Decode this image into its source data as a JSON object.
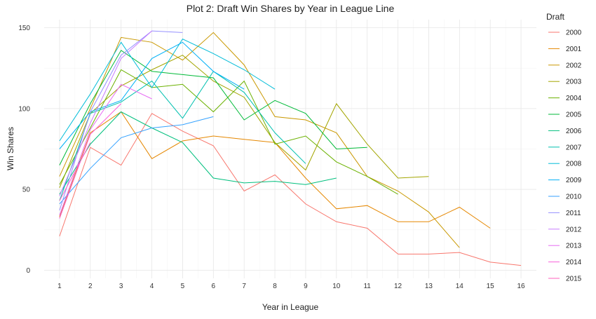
{
  "chart_data": {
    "type": "line",
    "title": "Plot 2: Draft Win Shares by Year in League Line",
    "xlabel": "Year in League",
    "ylabel": "Win Shares",
    "xlim": [
      0.5,
      16.5
    ],
    "ylim": [
      -5,
      155
    ],
    "x_ticks": [
      1,
      2,
      3,
      4,
      5,
      6,
      7,
      8,
      9,
      10,
      11,
      12,
      13,
      14,
      15,
      16
    ],
    "y_ticks": [
      0,
      50,
      100,
      150
    ],
    "grid": true,
    "legend_title": "Draft",
    "legend_position": "right",
    "series": [
      {
        "name": "2000",
        "color": "#F8766D",
        "x": [
          1,
          2,
          3,
          4,
          5,
          6,
          7,
          8,
          9,
          10,
          11,
          12,
          13,
          14,
          15,
          16
        ],
        "y": [
          21,
          76,
          65,
          97,
          86,
          77,
          49,
          59,
          41,
          30,
          26,
          10,
          10,
          11,
          5,
          3
        ]
      },
      {
        "name": "2001",
        "color": "#E58700",
        "x": [
          1,
          2,
          3,
          4,
          5,
          6,
          7,
          8,
          9,
          10,
          11,
          12,
          13,
          14,
          15
        ],
        "y": [
          33,
          85,
          98,
          69,
          80,
          83,
          81,
          79,
          57,
          38,
          40,
          30,
          30,
          39,
          26
        ]
      },
      {
        "name": "2002",
        "color": "#C99800",
        "x": [
          1,
          2,
          3,
          4,
          5,
          6,
          7,
          8,
          9,
          10,
          11,
          12,
          13,
          14
        ],
        "y": [
          58,
          100,
          144,
          141,
          130,
          147,
          127,
          95,
          93,
          85,
          58,
          49,
          36,
          14
        ]
      },
      {
        "name": "2003",
        "color": "#A3A500",
        "x": [
          1,
          2,
          3,
          4,
          5,
          6,
          7,
          8,
          9,
          10,
          11,
          12,
          13
        ],
        "y": [
          51,
          97,
          114,
          124,
          133,
          117,
          107,
          79,
          62,
          103,
          78,
          57,
          58
        ]
      },
      {
        "name": "2004",
        "color": "#6BB100",
        "x": [
          1,
          2,
          3,
          4,
          5,
          6,
          7,
          8,
          9,
          10,
          11,
          12
        ],
        "y": [
          53,
          88,
          124,
          113,
          115,
          98,
          117,
          78,
          83,
          67,
          58,
          47
        ]
      },
      {
        "name": "2005",
        "color": "#00BA38",
        "x": [
          1,
          2,
          3,
          4,
          5,
          6,
          7,
          8,
          9,
          10,
          11
        ],
        "y": [
          65,
          103,
          136,
          123,
          121,
          119,
          93,
          105,
          97,
          75,
          76
        ]
      },
      {
        "name": "2006",
        "color": "#00BF7D",
        "x": [
          1,
          2,
          3,
          4,
          5,
          6,
          7,
          8,
          9,
          10
        ],
        "y": [
          47,
          78,
          98,
          88,
          79,
          57,
          54,
          55,
          53,
          57
        ]
      },
      {
        "name": "2007",
        "color": "#00C0AF",
        "x": [
          1,
          2,
          3,
          4,
          5,
          6,
          7,
          8,
          9
        ],
        "y": [
          43,
          97,
          104,
          117,
          94,
          123,
          110,
          85,
          66
        ]
      },
      {
        "name": "2008",
        "color": "#00BCD8",
        "x": [
          1,
          2,
          3,
          4,
          5,
          6,
          7,
          8
        ],
        "y": [
          80,
          109,
          141,
          113,
          143,
          134,
          124,
          112
        ]
      },
      {
        "name": "2009",
        "color": "#00B0F6",
        "x": [
          1,
          2,
          3,
          4,
          5,
          6,
          7
        ],
        "y": [
          75,
          98,
          105,
          131,
          141,
          123,
          112
        ]
      },
      {
        "name": "2010",
        "color": "#35A2FF",
        "x": [
          1,
          2,
          3,
          4,
          5,
          6
        ],
        "y": [
          41,
          63,
          82,
          88,
          90,
          95
        ]
      },
      {
        "name": "2011",
        "color": "#9590FF",
        "x": [
          1,
          2,
          3,
          4,
          5
        ],
        "y": [
          37,
          98,
          133,
          148,
          147
        ]
      },
      {
        "name": "2012",
        "color": "#C77CFF",
        "x": [
          1,
          2,
          3,
          4
        ],
        "y": [
          46,
          91,
          131,
          148
        ]
      },
      {
        "name": "2013",
        "color": "#E76BF3",
        "x": [
          1,
          2,
          3,
          4
        ],
        "y": [
          34,
          87,
          115,
          106
        ]
      },
      {
        "name": "2014",
        "color": "#FA62DB",
        "x": [
          1,
          2,
          3
        ],
        "y": [
          32,
          84,
          103
        ]
      },
      {
        "name": "2015",
        "color": "#FF62BC",
        "x": [
          1,
          2
        ],
        "y": [
          43,
          79
        ]
      }
    ]
  }
}
